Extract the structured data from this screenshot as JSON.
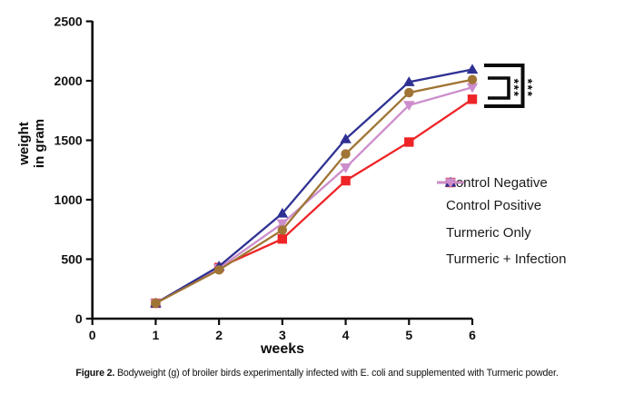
{
  "figure": {
    "caption_label": "Figure 2.",
    "caption_text": "Bodyweight (g) of broiler birds experimentally infected with E. coli and supplemented with Turmeric powder."
  },
  "axes": {
    "xlabel": "weeks",
    "ylabel_lines": [
      "weight",
      "in gram"
    ]
  },
  "chart_data": {
    "type": "line",
    "title": "",
    "xlabel": "weeks",
    "ylabel": "weight in gram",
    "x": [
      1,
      2,
      3,
      4,
      5,
      6
    ],
    "xlim": [
      0,
      6
    ],
    "ylim": [
      0,
      2500
    ],
    "xticks": [
      "0",
      "1",
      "2",
      "3",
      "4",
      "5",
      "6"
    ],
    "yticks": [
      "0",
      "500",
      "1000",
      "1500",
      "2000",
      "2500"
    ],
    "grid": false,
    "legend_position": "inside-right",
    "series": [
      {
        "name": "Control Negative",
        "color": "#9F7434",
        "marker": "circle",
        "values": [
          130,
          410,
          745,
          1385,
          1900,
          2010
        ]
      },
      {
        "name": "Control Positive",
        "color": "#EE2426",
        "marker": "square",
        "values": [
          130,
          430,
          670,
          1160,
          1485,
          1845
        ]
      },
      {
        "name": "Turmeric Only",
        "color": "#2E3192",
        "marker": "triangle-up",
        "values": [
          130,
          440,
          885,
          1510,
          1990,
          2095
        ]
      },
      {
        "name": "Turmeric + Infection",
        "color": "#CC8DCC",
        "marker": "triangle-down",
        "values": [
          130,
          425,
          800,
          1270,
          1795,
          1945
        ]
      }
    ],
    "significance": [
      {
        "label": "***",
        "between": [
          "Control Negative",
          "Control Positive"
        ]
      },
      {
        "label": "***",
        "between": [
          "Turmeric Only",
          "Control Positive"
        ]
      }
    ]
  }
}
